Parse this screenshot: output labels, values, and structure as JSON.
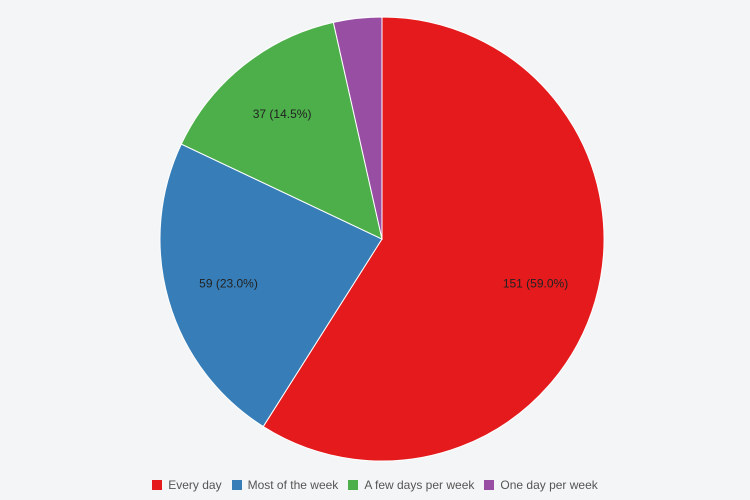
{
  "chart_data": {
    "type": "pie",
    "title": "",
    "categories": [
      "Every day",
      "Most of the week",
      "A few days per week",
      "One day per week"
    ],
    "values": [
      151,
      59,
      37,
      9
    ],
    "data_labels": [
      "151 (59.0%)",
      "59 (23.0%)",
      "37 (14.5%)",
      ""
    ],
    "colors": [
      "#e41a1c",
      "#377eb8",
      "#4daf4a",
      "#984ea3"
    ],
    "start": "12 o'clock",
    "direction": "clockwise",
    "legend": {
      "position": "bottom",
      "entries": [
        "Every day",
        "Most of the week",
        "A few days per week",
        "One day per week"
      ]
    }
  }
}
